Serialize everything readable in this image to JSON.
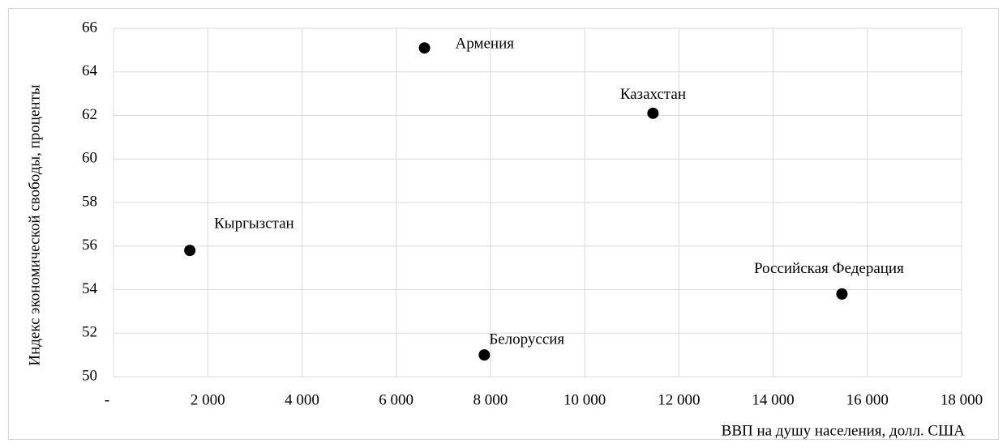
{
  "chart_data": {
    "type": "scatter",
    "x_label": "ВВП на душу населения, долл. США",
    "y_label": "Индекс экономической свободы, проценты",
    "point_labels": [
      "Армения",
      "Казахстан",
      "Кыргызстан",
      "Российская Федерация",
      "Белоруссия"
    ],
    "x": [
      6600,
      11450,
      1620,
      15460,
      7870
    ],
    "values": [
      65.1,
      62.1,
      55.8,
      53.8,
      51.0
    ],
    "color": "#000000",
    "xlim": [
      0,
      18000
    ],
    "xticks": [
      {
        "value": 0,
        "label": "-"
      },
      {
        "value": 2000,
        "label": "2 000"
      },
      {
        "value": 4000,
        "label": "4 000"
      },
      {
        "value": 6000,
        "label": "6 000"
      },
      {
        "value": 8000,
        "label": "8 000"
      },
      {
        "value": 10000,
        "label": "10 000"
      },
      {
        "value": 12000,
        "label": "12 000"
      },
      {
        "value": 14000,
        "label": "14 000"
      },
      {
        "value": 16000,
        "label": "16 000"
      },
      {
        "value": 18000,
        "label": "18 000"
      }
    ],
    "ylim": [
      50,
      66
    ],
    "yticks": [
      50,
      52,
      54,
      56,
      58,
      60,
      62,
      64,
      66
    ],
    "grid": true
  }
}
